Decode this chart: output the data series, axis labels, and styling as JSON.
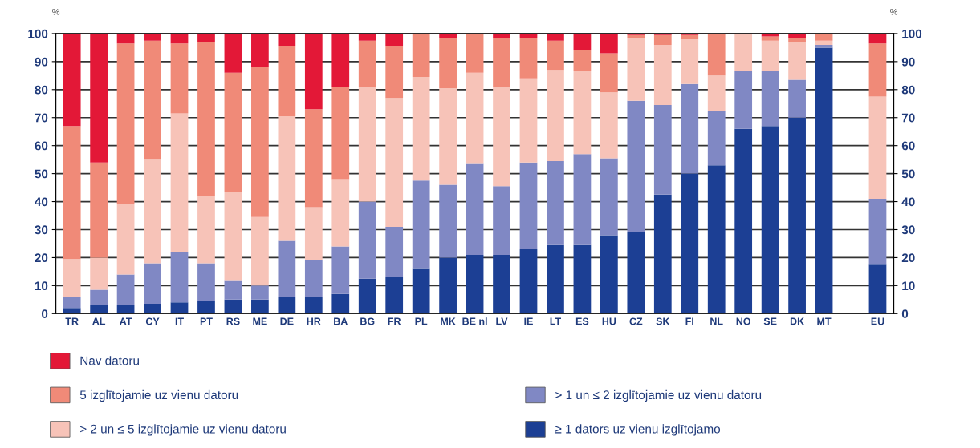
{
  "chart_data": {
    "type": "bar",
    "stacked": true,
    "categories": [
      "TR",
      "AL",
      "AT",
      "CY",
      "IT",
      "PT",
      "RS",
      "ME",
      "DE",
      "HR",
      "BA",
      "BG",
      "FR",
      "PL",
      "MK",
      "BE nl",
      "LV",
      "IE",
      "LT",
      "ES",
      "HU",
      "CZ",
      "SK",
      "FI",
      "NL",
      "NO",
      "SE",
      "DK",
      "MT",
      null,
      "EU"
    ],
    "series": [
      {
        "name": "≥ 1 dators uz vienu izglītojamo",
        "color": "#1c3f94",
        "values": [
          2,
          3,
          3,
          3.5,
          4,
          4.5,
          5,
          5,
          6,
          6,
          7,
          12.5,
          13,
          16,
          20,
          21,
          21,
          23,
          24.5,
          24.5,
          28,
          29,
          42.5,
          50,
          53,
          66,
          67,
          70,
          95,
          null,
          17.5
        ]
      },
      {
        "name": "> 1 un ≤ 2 izglītojamie uz vienu datoru",
        "color": "#8088c4",
        "values": [
          4,
          5.5,
          11,
          14.5,
          18,
          13.5,
          7,
          5,
          20,
          13,
          17,
          27.5,
          18,
          31.5,
          26,
          32.5,
          24.5,
          31,
          30,
          32.5,
          27.5,
          47,
          32,
          32,
          19.5,
          20.5,
          19.5,
          13.5,
          1,
          null,
          23.5
        ]
      },
      {
        "name": "> 2 un ≤ 5 izglītojamie uz vienu datoru",
        "color": "#f7c3b8",
        "values": [
          13.5,
          11.5,
          25,
          37,
          49.5,
          24,
          31.5,
          24.5,
          44.5,
          19,
          24,
          41,
          46,
          37,
          34.5,
          32.5,
          35.5,
          30,
          32.5,
          29.5,
          23.5,
          22.5,
          21.5,
          16,
          12.5,
          13.5,
          11,
          13.5,
          1.5,
          null,
          36.5
        ]
      },
      {
        "name": "5 izglītojamie uz vienu datoru",
        "color": "#f08a78",
        "values": [
          47.5,
          34,
          57.5,
          42.5,
          25,
          55,
          42.5,
          53.5,
          25,
          35,
          33,
          16.5,
          18.5,
          15.5,
          18,
          14,
          17.5,
          14.5,
          10.5,
          7.5,
          14,
          1,
          3.5,
          1.5,
          15,
          0,
          1.5,
          1.5,
          2.5,
          null,
          19
        ]
      },
      {
        "name": "Nav datoru",
        "color": "#e31837",
        "values": [
          33,
          46,
          3.5,
          2.5,
          3.5,
          3,
          14,
          12,
          4.5,
          27,
          19,
          2.5,
          4.5,
          0,
          1.5,
          0,
          1.5,
          1.5,
          2.5,
          6,
          7,
          0.5,
          0.5,
          0.5,
          0,
          0,
          1,
          1.5,
          0,
          null,
          3.5
        ]
      }
    ],
    "ylim": [
      0,
      100
    ],
    "yticks": [
      0,
      10,
      20,
      30,
      40,
      50,
      60,
      70,
      80,
      90,
      100
    ],
    "y2lim": [
      0,
      100
    ],
    "y2ticks": [
      0,
      10,
      20,
      30,
      40,
      50,
      60,
      70,
      80,
      90,
      100
    ],
    "ylabel": "%",
    "y2label": "%",
    "grid": "y",
    "legend": "bottom"
  }
}
